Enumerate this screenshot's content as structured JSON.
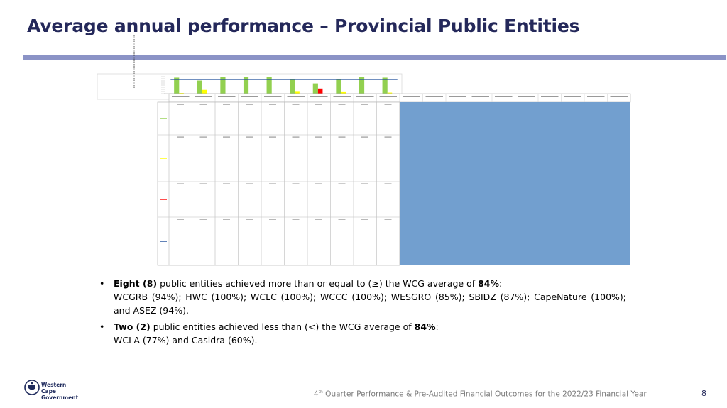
{
  "slide": {
    "title": "Average annual performance – Provincial Public Entities"
  },
  "chart_data": {
    "type": "bar",
    "categories": [
      "",
      "",
      "",
      "",
      "",
      "",
      "",
      "",
      "",
      ""
    ],
    "series": [
      {
        "color": "#92d050",
        "values": [
          94,
          77,
          100,
          100,
          100,
          85,
          60,
          87,
          100,
          94
        ]
      },
      {
        "color": "#ffff00",
        "values": [
          4,
          22,
          0,
          0,
          0,
          15,
          0,
          13,
          0,
          6
        ]
      },
      {
        "color": "#ff0000",
        "values": [
          0,
          0,
          0,
          0,
          0,
          0,
          30,
          0,
          0,
          0
        ]
      },
      {
        "color": "#1f4e9a",
        "values": [
          84,
          84,
          84,
          84,
          84,
          84,
          84,
          84,
          84,
          84
        ]
      }
    ],
    "legend_colors": [
      "#92d050",
      "#ffff00",
      "#ff0000",
      "#1f4e9a"
    ],
    "overlay_color": "#729fcf"
  },
  "bullets": [
    {
      "lead": "Eight (8)",
      "text": " public entities achieved more than or equal to (≥) the WCG average of ",
      "value": "84%",
      "colon": ":",
      "detail": "WCGRB (94%); HWC (100%); WCLC (100%); WCCC (100%); WESGRO (85%);  SBIDZ (87%); CapeNature (100%); and ASEZ (94%)."
    },
    {
      "lead": "Two (2)",
      "text": " public entities achieved less than (<) the WCG average of ",
      "value": "84%",
      "colon": ":",
      "detail": "WCLA (77%) and Casidra (60%)."
    }
  ],
  "logo": {
    "line1": "Western Cape",
    "line2": "Government"
  },
  "footer": {
    "prefix": "4",
    "sup": "th",
    "text": " Quarter Performance & Pre-Audited Financial Outcomes for the 2022/23 Financial Year",
    "page": "8"
  }
}
